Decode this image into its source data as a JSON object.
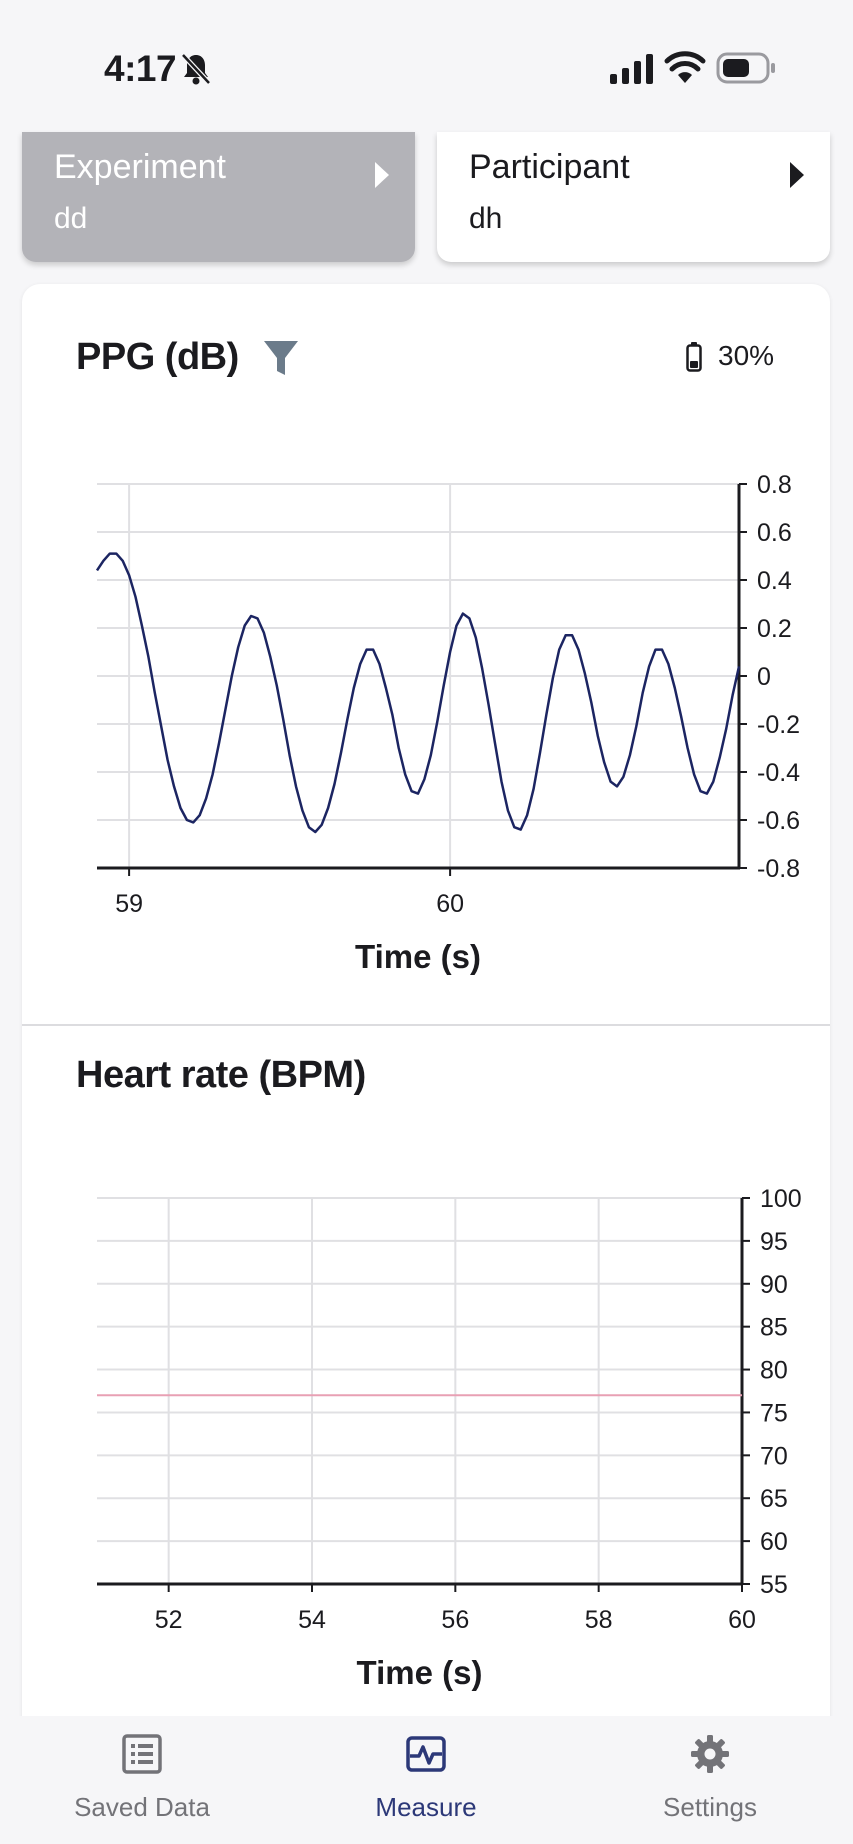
{
  "status_bar": {
    "time": "4:17"
  },
  "selectors": {
    "experiment": {
      "label": "Experiment",
      "value": "dd"
    },
    "participant": {
      "label": "Participant",
      "value": "dh"
    }
  },
  "ppg": {
    "title": "PPG (dB)",
    "battery": "30%"
  },
  "heart_rate": {
    "title": "Heart rate (BPM)"
  },
  "nav": {
    "saved_data": "Saved Data",
    "measure": "Measure",
    "settings": "Settings"
  },
  "colors": {
    "ppg_line": "#1c2562",
    "hr_line": "#e8a0b4",
    "active_nav": "#2c3878"
  },
  "chart_data": [
    {
      "type": "line",
      "title": "PPG (dB)",
      "xlabel": "Time (s)",
      "ylabel": "",
      "xlim": [
        58.9,
        60.9
      ],
      "ylim": [
        -0.8,
        0.8
      ],
      "x_ticks": [
        59,
        60
      ],
      "y_ticks": [
        "0.8",
        "0.6",
        "0.4",
        "0.2",
        "0",
        "-0.2",
        "-0.4",
        "-0.6",
        "-0.8"
      ],
      "grid": true,
      "y_axis_position": "right",
      "series": [
        {
          "x": [
            58.9,
            58.92,
            58.94,
            58.96,
            58.98,
            59.0,
            59.02,
            59.04,
            59.06,
            59.08,
            59.1,
            59.12,
            59.14,
            59.16,
            59.18,
            59.2,
            59.22,
            59.24,
            59.26,
            59.28,
            59.3,
            59.32,
            59.34,
            59.36,
            59.38,
            59.4,
            59.42,
            59.44,
            59.46,
            59.48,
            59.5,
            59.52,
            59.54,
            59.56,
            59.58,
            59.6,
            59.62,
            59.64,
            59.66,
            59.68,
            59.7,
            59.72,
            59.74,
            59.76,
            59.78,
            59.8,
            59.82,
            59.84,
            59.86,
            59.88,
            59.9,
            59.92,
            59.94,
            59.96,
            59.98,
            60.0,
            60.02,
            60.04,
            60.06,
            60.08,
            60.1,
            60.12,
            60.14,
            60.16,
            60.18,
            60.2,
            60.22,
            60.24,
            60.26,
            60.28,
            60.3,
            60.32,
            60.34,
            60.36,
            60.38,
            60.4,
            60.42,
            60.44,
            60.46,
            60.48,
            60.5,
            60.52,
            60.54,
            60.56,
            60.58,
            60.6,
            60.62,
            60.64,
            60.66,
            60.68,
            60.7,
            60.72,
            60.74,
            60.76,
            60.78,
            60.8,
            60.82,
            60.84,
            60.86,
            60.88,
            60.9
          ],
          "y": [
            0.44,
            0.48,
            0.51,
            0.51,
            0.48,
            0.42,
            0.33,
            0.21,
            0.08,
            -0.07,
            -0.21,
            -0.35,
            -0.46,
            -0.55,
            -0.6,
            -0.61,
            -0.58,
            -0.51,
            -0.41,
            -0.28,
            -0.14,
            -0.0,
            0.12,
            0.21,
            0.25,
            0.24,
            0.18,
            0.08,
            -0.04,
            -0.18,
            -0.33,
            -0.46,
            -0.56,
            -0.63,
            -0.65,
            -0.62,
            -0.55,
            -0.45,
            -0.32,
            -0.18,
            -0.05,
            0.05,
            0.11,
            0.11,
            0.05,
            -0.05,
            -0.16,
            -0.3,
            -0.41,
            -0.48,
            -0.49,
            -0.43,
            -0.33,
            -0.19,
            -0.04,
            0.1,
            0.21,
            0.26,
            0.24,
            0.16,
            0.03,
            -0.12,
            -0.28,
            -0.44,
            -0.56,
            -0.63,
            -0.64,
            -0.58,
            -0.47,
            -0.32,
            -0.16,
            -0.01,
            0.11,
            0.17,
            0.17,
            0.11,
            0.01,
            -0.11,
            -0.25,
            -0.36,
            -0.44,
            -0.46,
            -0.42,
            -0.33,
            -0.21,
            -0.07,
            0.04,
            0.11,
            0.11,
            0.05,
            -0.05,
            -0.17,
            -0.3,
            -0.41,
            -0.48,
            -0.49,
            -0.44,
            -0.34,
            -0.22,
            -0.08,
            0.04
          ]
        }
      ]
    },
    {
      "type": "line",
      "title": "Heart rate (BPM)",
      "xlabel": "Time (s)",
      "ylabel": "",
      "xlim": [
        51,
        60
      ],
      "ylim": [
        55,
        100
      ],
      "x_ticks": [
        52,
        54,
        56,
        58,
        60
      ],
      "y_ticks": [
        100,
        95,
        90,
        85,
        80,
        75,
        70,
        65,
        60,
        55
      ],
      "grid": true,
      "y_axis_position": "right",
      "series": [
        {
          "x": [
            51,
            60
          ],
          "y": [
            77,
            77
          ]
        }
      ]
    }
  ]
}
